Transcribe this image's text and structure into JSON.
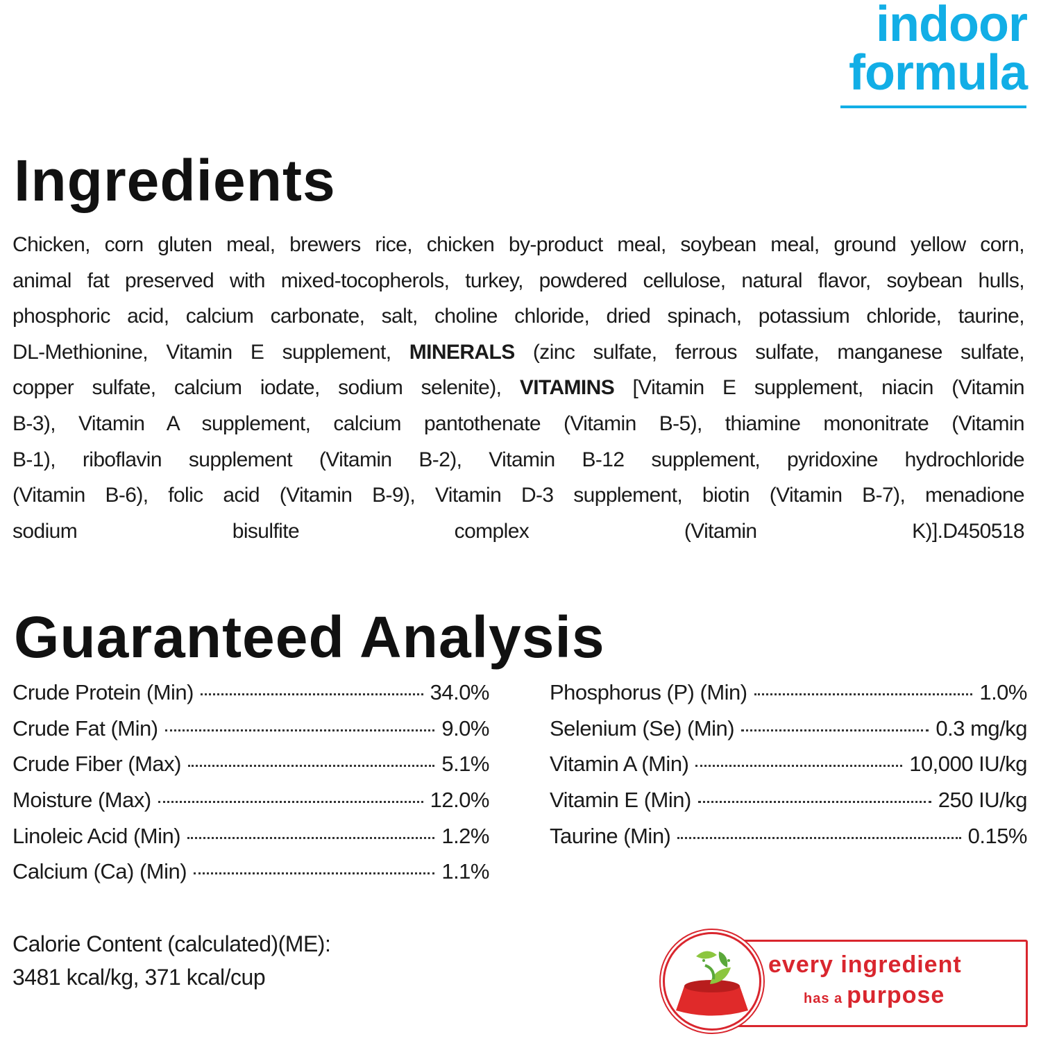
{
  "brand": {
    "line1": "indoor",
    "line2": "formula",
    "color": "#12aee6"
  },
  "ingredients": {
    "title": "Ingredients",
    "lines": [
      [
        {
          "t": "Chicken, corn gluten meal, brewers rice, chicken by-product meal, soybean meal, ground yellow corn,"
        }
      ],
      [
        {
          "t": "animal fat preserved with mixed-tocopherols, turkey, powdered cellulose, natural flavor, soybean hulls,"
        }
      ],
      [
        {
          "t": "phosphoric acid, calcium carbonate, salt, choline chloride, dried spinach, potassium chloride, taurine,"
        }
      ],
      [
        {
          "t": "DL-Methionine, Vitamin E supplement, "
        },
        {
          "t": "MINERALS",
          "b": true
        },
        {
          "t": " (zinc sulfate, ferrous sulfate, manganese sulfate,"
        }
      ],
      [
        {
          "t": "copper sulfate, calcium iodate, sodium selenite), "
        },
        {
          "t": "VITAMINS",
          "b": true
        },
        {
          "t": " [Vitamin E supplement, niacin (Vitamin"
        }
      ],
      [
        {
          "t": "B-3), Vitamin A supplement, calcium pantothenate (Vitamin B-5), thiamine mononitrate (Vitamin"
        }
      ],
      [
        {
          "t": "B-1), riboflavin supplement (Vitamin B-2), Vitamin B-12 supplement, pyridoxine hydrochloride"
        }
      ],
      [
        {
          "t": "(Vitamin B-6), folic acid (Vitamin B-9), Vitamin D-3 supplement, biotin (Vitamin B-7), menadione"
        }
      ],
      [
        {
          "t": "sodium bisulfite complex (Vitamin K)]."
        },
        {
          "t": "D450518",
          "code": true
        }
      ]
    ]
  },
  "analysis": {
    "title": "Guaranteed Analysis",
    "left": [
      {
        "label": "Crude Protein (Min)",
        "value": "34.0%"
      },
      {
        "label": "Crude Fat (Min)",
        "value": "9.0%"
      },
      {
        "label": "Crude Fiber (Max)",
        "value": "5.1%"
      },
      {
        "label": "Moisture (Max)",
        "value": "12.0%"
      },
      {
        "label": "Linoleic Acid (Min)",
        "value": "1.2%"
      },
      {
        "label": "Calcium (Ca) (Min)",
        "value": "1.1%"
      }
    ],
    "right": [
      {
        "label": "Phosphorus (P) (Min)",
        "value": "1.0%"
      },
      {
        "label": "Selenium (Se) (Min)",
        "value": "0.3 mg/kg"
      },
      {
        "label": "Vitamin A (Min)",
        "value": "10,000 IU/kg"
      },
      {
        "label": "Vitamin E (Min)",
        "value": "250 IU/kg"
      },
      {
        "label": "Taurine (Min)",
        "value": "0.15%"
      }
    ]
  },
  "calorie": {
    "label": "Calorie Content (calculated)(ME):",
    "value": "3481 kcal/kg, 371 kcal/cup"
  },
  "badge": {
    "line1": "every ingredient",
    "line2_small": "has a",
    "line2": "purpose",
    "color": "#d9262e",
    "icon": "food-bowl-with-leaves-icon"
  }
}
